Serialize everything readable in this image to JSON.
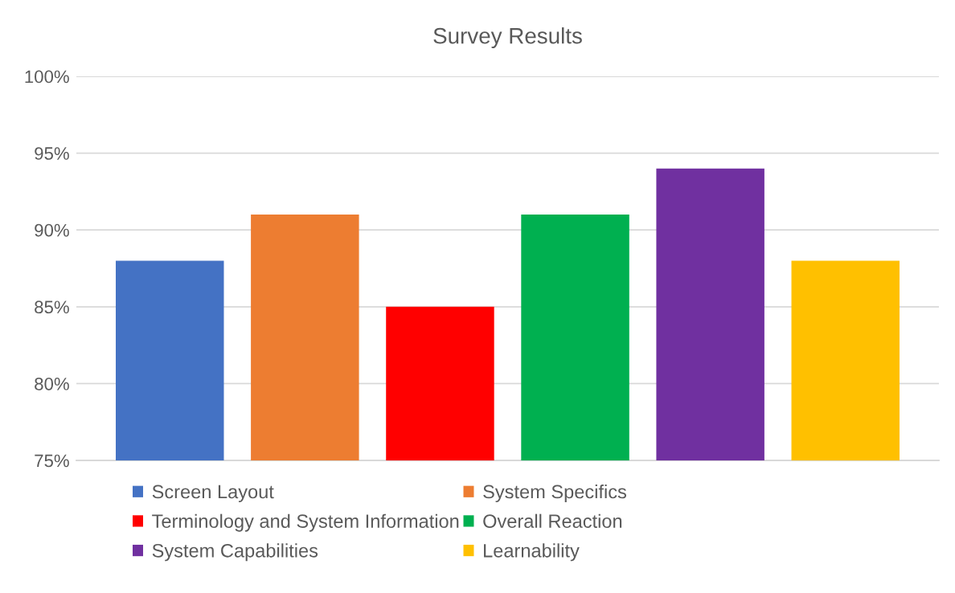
{
  "chart_data": {
    "type": "bar",
    "title": "Survey Results",
    "categories": [
      null
    ],
    "series": [
      {
        "name": "Screen Layout",
        "color": "#4472c4",
        "values": [
          88
        ]
      },
      {
        "name": "System Specifics",
        "color": "#ed7d31",
        "values": [
          91
        ]
      },
      {
        "name": "Terminology and System Information",
        "color": "#ff0000",
        "values": [
          85
        ]
      },
      {
        "name": "Overall Reaction",
        "color": "#00b050",
        "values": [
          91
        ]
      },
      {
        "name": "System Capabilities",
        "color": "#7030a0",
        "values": [
          94
        ]
      },
      {
        "name": "Learnability",
        "color": "#ffc000",
        "values": [
          88
        ]
      }
    ],
    "ylim": [
      75,
      100
    ],
    "yticks": [
      {
        "value": 75,
        "label": "75%"
      },
      {
        "value": 80,
        "label": "80%"
      },
      {
        "value": 85,
        "label": "85%"
      },
      {
        "value": 90,
        "label": "90%"
      },
      {
        "value": 95,
        "label": "95%"
      },
      {
        "value": 100,
        "label": "100%"
      }
    ],
    "grid": "y",
    "legend": "bottom",
    "tick_labels": "y"
  }
}
